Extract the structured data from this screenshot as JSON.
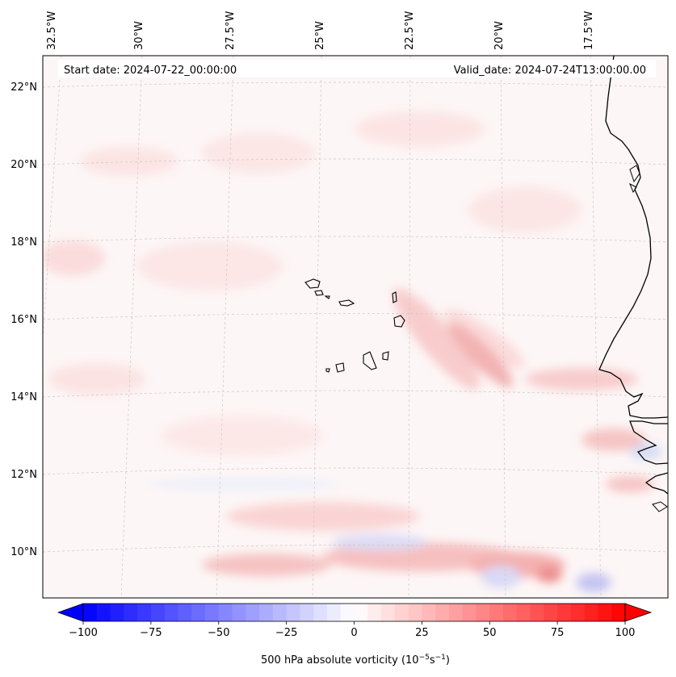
{
  "header": {
    "start_date": "Start date: 2024-07-22_00:00:00",
    "valid_date": "Valid_date: 2024-07-24T13:00:00.00"
  },
  "map": {
    "lon_ticks": [
      "32.5°W",
      "30°W",
      "27.5°W",
      "25°W",
      "22.5°W",
      "20°W",
      "17.5°W"
    ],
    "lat_ticks": [
      "22°N",
      "20°N",
      "18°N",
      "16°N",
      "14°N",
      "12°N",
      "10°N"
    ],
    "gridlines": true,
    "coastline_color": "#000000"
  },
  "colorbar": {
    "label_main": "500 hPa absolute vorticity (10",
    "label_exp1": "−5",
    "label_mid": "s",
    "label_exp2": "−1",
    "label_end": ")",
    "tick_labels": [
      "−100",
      "−75",
      "−50",
      "−25",
      "0",
      "25",
      "50",
      "75",
      "100"
    ],
    "min": -100,
    "max": 100,
    "colormap": "bwr",
    "low_color": "#0000ff",
    "mid_color": "#ffffff",
    "high_color": "#ff0000",
    "extend": "both"
  }
}
